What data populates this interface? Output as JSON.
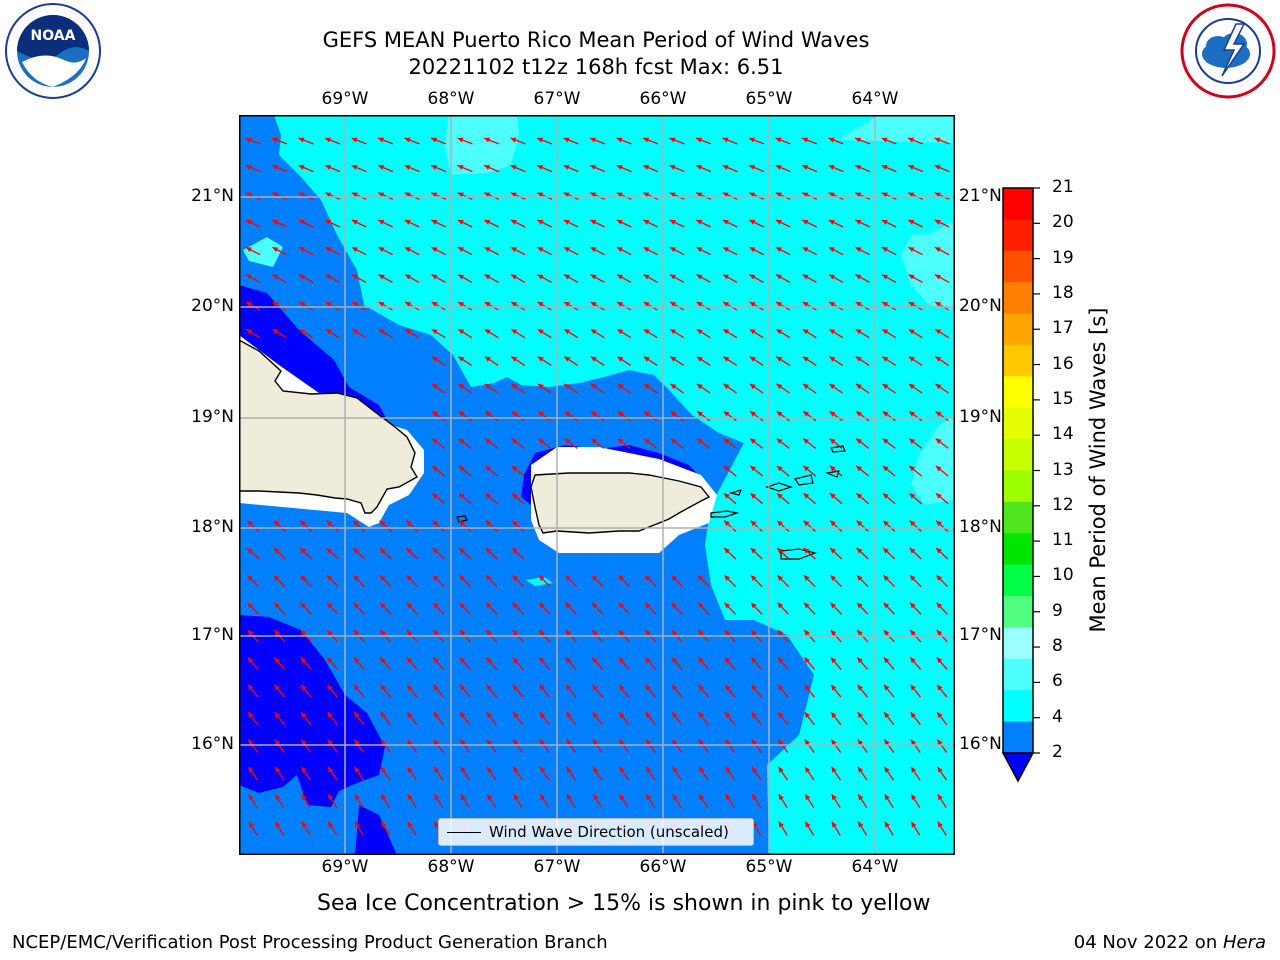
{
  "title": {
    "line1": "GEFS MEAN Puerto Rico Mean Period of Wind Waves",
    "line2": "20221102 t12z 168h fcst   Max: 6.51"
  },
  "logos": {
    "left": "noara-logo",
    "right": "nws-logo",
    "noaa_text": "NOAA"
  },
  "map": {
    "lon_labels": [
      "69°W",
      "68°W",
      "67°W",
      "66°W",
      "65°W",
      "64°W"
    ],
    "lat_labels": [
      "21°N",
      "20°N",
      "19°N",
      "18°N",
      "17°N",
      "16°N"
    ],
    "legend_label": "Wind Wave Direction (unscaled)",
    "land_color": "#f0ecdc",
    "colors": {
      "dark_blue": "#0000ff",
      "mid_blue": "#0080ff",
      "cyan": "#00ffff",
      "light_cyan": "#4dffff",
      "arrow": "#ff0000"
    }
  },
  "colorbar": {
    "title": "Mean Period of Wind Waves [s]",
    "ticks": [
      "21",
      "20",
      "19",
      "18",
      "17",
      "16",
      "15",
      "14",
      "13",
      "12",
      "11",
      "10",
      "9",
      "8",
      "6",
      "4",
      "2"
    ],
    "colors_top_to_bottom": [
      "#ff0000",
      "#ff2000",
      "#ff5000",
      "#ff8000",
      "#ffa500",
      "#ffc800",
      "#ffff00",
      "#e6ff00",
      "#c8ff00",
      "#9bff00",
      "#50e61e",
      "#00e600",
      "#00ff46",
      "#50ff80",
      "#9bffff",
      "#4dffff",
      "#00ffff",
      "#0080ff"
    ],
    "extend_color": "#0000ff"
  },
  "caption": "Sea Ice Concentration > 15% is shown in pink to yellow",
  "footer": {
    "left": "NCEP/EMC/Verification Post Processing Product Generation Branch",
    "date": "04 Nov 2022 on ",
    "machine": "Hera"
  }
}
